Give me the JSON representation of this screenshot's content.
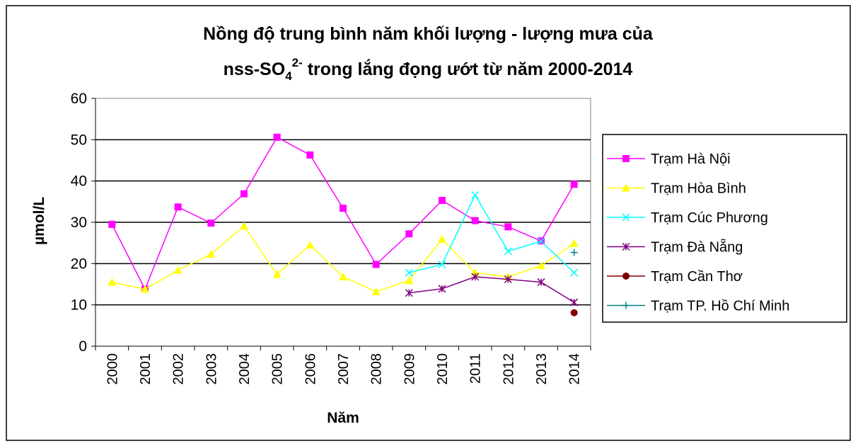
{
  "chart_data": {
    "type": "line",
    "title": [
      "Nồng độ trung bình năm khối lượng - lượng mưa của",
      "nss-SO",
      "4",
      "2-",
      " trong lắng đọng ướt  từ năm 2000-2014"
    ],
    "x_label": "Năm",
    "y_label": "µmol/L",
    "categories": [
      "2000",
      "2001",
      "2002",
      "2003",
      "2004",
      "2005",
      "2006",
      "2007",
      "2008",
      "2009",
      "2010",
      "2011",
      "2012",
      "2013",
      "2014"
    ],
    "ylim": [
      0,
      60
    ],
    "yticks": [
      0,
      10,
      20,
      30,
      40,
      50,
      60
    ],
    "grid": true,
    "legend": "right",
    "series": [
      {
        "name": "Trạm Hà Nội",
        "color": "#ff00ff",
        "marker": "square",
        "values": [
          29.5,
          13.8,
          33.7,
          29.8,
          36.9,
          50.6,
          46.3,
          33.4,
          19.8,
          27.2,
          35.3,
          30.4,
          28.9,
          25.5,
          39.2
        ]
      },
      {
        "name": "Trạm Hòa Bình",
        "color": "#ffff00",
        "marker": "triangle",
        "values": [
          15.5,
          13.8,
          18.4,
          22.3,
          29.1,
          17.4,
          24.5,
          16.8,
          13.2,
          15.9,
          25.9,
          17.8,
          16.8,
          19.5,
          24.9
        ]
      },
      {
        "name": "Trạm Cúc Phương",
        "color": "#00ffff",
        "marker": "x",
        "values": [
          null,
          null,
          null,
          null,
          null,
          null,
          null,
          null,
          null,
          17.8,
          19.8,
          36.6,
          23.0,
          25.4,
          17.8
        ]
      },
      {
        "name": "Trạm Đà Nẵng",
        "color": "#800080",
        "marker": "asterisk",
        "values": [
          null,
          null,
          null,
          null,
          null,
          null,
          null,
          null,
          null,
          12.9,
          13.9,
          16.8,
          16.2,
          15.5,
          10.6
        ]
      },
      {
        "name": "Trạm Cần Thơ",
        "color": "#800000",
        "marker": "circle",
        "values": [
          null,
          null,
          null,
          null,
          null,
          null,
          null,
          null,
          null,
          null,
          null,
          null,
          null,
          null,
          8.1
        ]
      },
      {
        "name": "Trạm TP. Hồ Chí Minh",
        "color": "#008080",
        "marker": "plus",
        "values": [
          null,
          null,
          null,
          null,
          null,
          null,
          null,
          null,
          null,
          null,
          null,
          null,
          null,
          null,
          22.7
        ]
      }
    ]
  }
}
